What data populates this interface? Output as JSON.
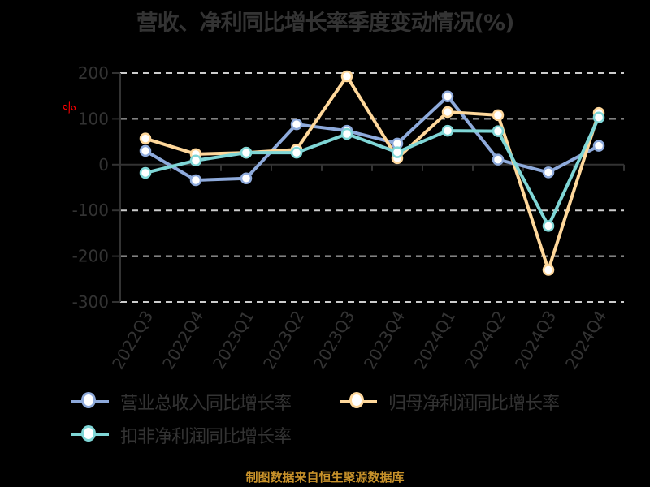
{
  "title": "营收、净利同比增长率季度变动情况(%)",
  "source_note": "制图数据来自恒生聚源数据库",
  "chart_data": {
    "type": "line",
    "title": "营收、净利同比增长率季度变动情况(%)",
    "xlabel": "",
    "ylabel": "%",
    "ylim": [
      -300,
      200
    ],
    "yticks": [
      200,
      100,
      0,
      -100,
      -200,
      -300
    ],
    "grid": true,
    "legend_position": "bottom",
    "categories": [
      "2022Q3",
      "2022Q4",
      "2023Q1",
      "2023Q2",
      "2023Q3",
      "2023Q4",
      "2024Q1",
      "2024Q2",
      "2024Q3",
      "2024Q4"
    ],
    "series": [
      {
        "name": "营业总收入同比增长率",
        "color": "#8eaadb",
        "values": [
          30,
          -34,
          -30,
          88,
          74,
          46,
          149,
          11,
          -17,
          41
        ]
      },
      {
        "name": "归母净利润同比增长率",
        "color": "#ffd89b",
        "values": [
          57,
          23,
          26,
          33,
          193,
          14,
          115,
          108,
          -230,
          113
        ]
      },
      {
        "name": "扣非净利润同比增长率",
        "color": "#7fd6d6",
        "values": [
          -18,
          9,
          26,
          26,
          67,
          27,
          74,
          73,
          -134,
          103
        ]
      }
    ]
  },
  "legend": {
    "items": [
      {
        "label": "营业总收入同比增长率",
        "color": "#8eaadb"
      },
      {
        "label": "归母净利润同比增长率",
        "color": "#ffd89b"
      },
      {
        "label": "扣非净利润同比增长率",
        "color": "#7fd6d6"
      }
    ]
  },
  "colors": {
    "background": "#000000",
    "text": "#333333",
    "grid": "#cccccc",
    "unit": "#ff0000",
    "source": "#c8922a"
  }
}
